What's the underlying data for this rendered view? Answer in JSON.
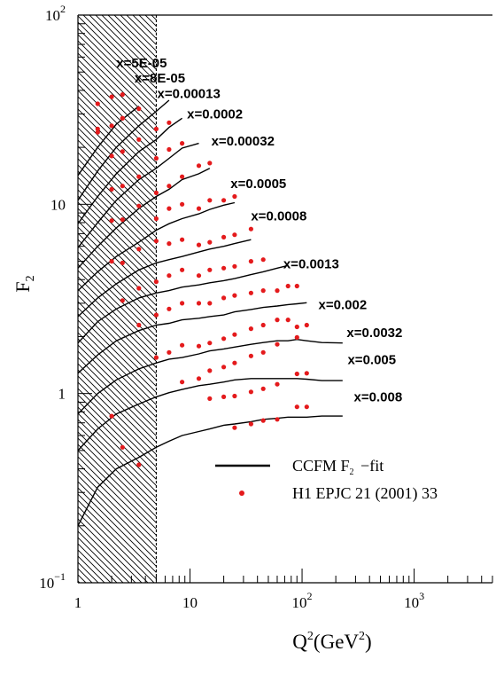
{
  "chart_data": {
    "type": "line",
    "title": "",
    "ylabel": "F",
    "ylabel_sub": "2",
    "xlabel_q": "Q",
    "xlabel_sup": "2",
    "xlabel_open": "(GeV",
    "xlabel_sup2": "2",
    "xlabel_close": ")",
    "xscale": "log",
    "yscale": "log",
    "xlim": [
      1,
      5000
    ],
    "ylim": [
      0.1,
      100
    ],
    "colors": {
      "curve": "#000000",
      "data": "#e41a1c",
      "hatch": "#000000"
    },
    "excluded_region": {
      "q2_min": 1,
      "q2_max": 5
    },
    "x_ticks": [
      {
        "value": 1,
        "label": "1"
      },
      {
        "value": 10,
        "label": "10"
      },
      {
        "value": 100,
        "base": "10",
        "exp": "2"
      },
      {
        "value": 1000,
        "base": "10",
        "exp": "3"
      }
    ],
    "y_ticks": [
      {
        "value": 0.1,
        "base": "10",
        "exp": "−1"
      },
      {
        "value": 1,
        "label": "1"
      },
      {
        "value": 10,
        "label": "10"
      },
      {
        "value": 100,
        "base": "10",
        "exp": "2"
      }
    ],
    "bin_labels": [
      {
        "text": "x=5E-05",
        "q2": 2.2,
        "f2": 53
      },
      {
        "text": "x=8E-05",
        "q2": 3.2,
        "f2": 44
      },
      {
        "text": "x=0.00013",
        "q2": 5.1,
        "f2": 36.5
      },
      {
        "text": "x=0.0002",
        "q2": 9.4,
        "f2": 28.5
      },
      {
        "text": "x=0.00032",
        "q2": 15.5,
        "f2": 20.5
      },
      {
        "text": "x=0.0005",
        "q2": 23,
        "f2": 12.2
      },
      {
        "text": "x=0.0008",
        "q2": 35,
        "f2": 8.2
      },
      {
        "text": "x=0.0013",
        "q2": 68,
        "f2": 4.6
      },
      {
        "text": "x=0.002",
        "q2": 140,
        "f2": 2.8
      },
      {
        "text": "x=0.0032",
        "q2": 250,
        "f2": 1.99
      },
      {
        "text": "x=0.005",
        "q2": 255,
        "f2": 1.43
      },
      {
        "text": "x=0.008",
        "q2": 290,
        "f2": 0.91
      }
    ],
    "series": [
      {
        "name": "x=5E-05",
        "curve": [
          [
            1,
            14.2
          ],
          [
            1.5,
            20
          ],
          [
            2.2,
            26.5
          ],
          [
            3.5,
            33
          ]
        ],
        "points": [
          [
            1.5,
            34
          ],
          [
            1.5,
            25
          ],
          [
            2.0,
            37
          ],
          [
            2.5,
            38
          ],
          [
            2.5,
            28.5
          ]
        ]
      },
      {
        "name": "x=8E-05",
        "curve": [
          [
            1,
            10.5
          ],
          [
            1.5,
            15
          ],
          [
            2.2,
            20
          ],
          [
            3.5,
            26
          ],
          [
            5,
            31
          ],
          [
            6.5,
            35.5
          ]
        ],
        "points": [
          [
            1.5,
            24
          ],
          [
            2.0,
            26
          ],
          [
            2.5,
            28.5
          ],
          [
            3.5,
            32
          ],
          [
            5,
            25
          ],
          [
            6.5,
            27
          ]
        ]
      },
      {
        "name": "x=0.00013",
        "curve": [
          [
            1,
            7.9
          ],
          [
            1.5,
            11
          ],
          [
            2.2,
            14.5
          ],
          [
            3.5,
            19
          ],
          [
            5,
            22
          ],
          [
            6.5,
            25.5
          ],
          [
            8.5,
            28.5
          ]
        ],
        "points": [
          [
            2.0,
            18
          ],
          [
            2.5,
            19
          ],
          [
            3.5,
            22
          ],
          [
            5,
            17.5
          ],
          [
            6.5,
            19.5
          ],
          [
            8.5,
            21
          ]
        ]
      },
      {
        "name": "x=0.0002",
        "curve": [
          [
            1,
            5.9
          ],
          [
            1.5,
            8
          ],
          [
            2.2,
            10.5
          ],
          [
            3.5,
            13.5
          ],
          [
            5,
            15.5
          ],
          [
            6.5,
            17.5
          ],
          [
            8.5,
            19.8
          ],
          [
            12,
            21
          ]
        ],
        "points": [
          [
            2.0,
            12
          ],
          [
            2.5,
            12.5
          ],
          [
            3.5,
            14
          ],
          [
            5,
            11.5
          ],
          [
            6.5,
            12.5
          ],
          [
            8.5,
            14
          ],
          [
            12,
            16
          ],
          [
            15,
            16.5
          ]
        ]
      },
      {
        "name": "x=0.00032",
        "curve": [
          [
            1,
            4.6
          ],
          [
            1.5,
            6
          ],
          [
            2.2,
            7.5
          ],
          [
            3.5,
            9.5
          ],
          [
            5,
            11
          ],
          [
            6.5,
            12
          ],
          [
            8.5,
            13.5
          ],
          [
            12,
            14.5
          ],
          [
            15,
            15.5
          ]
        ],
        "points": [
          [
            2.0,
            8.2
          ],
          [
            2.5,
            8.3
          ],
          [
            3.5,
            9.8
          ],
          [
            5,
            8.4
          ],
          [
            6.5,
            9.5
          ],
          [
            8.5,
            10
          ],
          [
            12,
            9.5
          ],
          [
            15,
            10.5
          ],
          [
            20,
            10.5
          ],
          [
            25,
            11
          ]
        ]
      },
      {
        "name": "x=0.0005",
        "curve": [
          [
            1,
            3.5
          ],
          [
            1.5,
            4.4
          ],
          [
            2.2,
            5.3
          ],
          [
            3.5,
            6.3
          ],
          [
            5,
            7.3
          ],
          [
            6.5,
            7.9
          ],
          [
            8.5,
            8.4
          ],
          [
            12,
            8.9
          ],
          [
            15,
            9.4
          ],
          [
            20,
            9.9
          ],
          [
            25,
            10.2
          ]
        ],
        "points": [
          [
            2.0,
            5.0
          ],
          [
            2.5,
            4.9
          ],
          [
            3.5,
            5.8
          ],
          [
            5,
            6.4
          ],
          [
            6.5,
            6.2
          ],
          [
            8.5,
            6.5
          ],
          [
            12,
            6.1
          ],
          [
            15,
            6.3
          ],
          [
            20,
            6.7
          ],
          [
            25,
            6.9
          ],
          [
            35,
            7.4
          ]
        ]
      },
      {
        "name": "x=0.0008",
        "curve": [
          [
            1,
            2.55
          ],
          [
            1.5,
            3.2
          ],
          [
            2.2,
            3.8
          ],
          [
            3.5,
            4.5
          ],
          [
            5,
            4.9
          ],
          [
            6.5,
            5.1
          ],
          [
            8.5,
            5.3
          ],
          [
            12,
            5.6
          ],
          [
            15,
            5.8
          ],
          [
            20,
            6.0
          ],
          [
            25,
            6.2
          ],
          [
            35,
            6.5
          ]
        ],
        "points": [
          [
            2.5,
            3.1
          ],
          [
            3.5,
            3.6
          ],
          [
            5,
            3.9
          ],
          [
            6.5,
            4.2
          ],
          [
            8.5,
            4.5
          ],
          [
            12,
            4.2
          ],
          [
            15,
            4.5
          ],
          [
            20,
            4.6
          ],
          [
            25,
            4.7
          ],
          [
            35,
            5.0
          ],
          [
            45,
            5.1
          ]
        ]
      },
      {
        "name": "x=0.0013",
        "curve": [
          [
            1,
            1.85
          ],
          [
            1.5,
            2.4
          ],
          [
            2.2,
            2.8
          ],
          [
            3.5,
            3.2
          ],
          [
            5,
            3.4
          ],
          [
            6.5,
            3.5
          ],
          [
            8.5,
            3.65
          ],
          [
            12,
            3.75
          ],
          [
            15,
            3.85
          ],
          [
            20,
            3.95
          ],
          [
            25,
            4.05
          ],
          [
            35,
            4.25
          ],
          [
            45,
            4.4
          ],
          [
            60,
            4.6
          ],
          [
            75,
            4.75
          ]
        ],
        "points": [
          [
            3.5,
            2.3
          ],
          [
            5,
            2.6
          ],
          [
            6.5,
            2.8
          ],
          [
            8.5,
            3.0
          ],
          [
            12,
            3.0
          ],
          [
            15,
            3.0
          ],
          [
            20,
            3.2
          ],
          [
            25,
            3.3
          ],
          [
            35,
            3.4
          ],
          [
            45,
            3.5
          ],
          [
            60,
            3.5
          ],
          [
            75,
            3.7
          ],
          [
            90,
            3.7
          ]
        ]
      },
      {
        "name": "x=0.002",
        "curve": [
          [
            1,
            1.28
          ],
          [
            1.5,
            1.6
          ],
          [
            2.2,
            1.9
          ],
          [
            3.5,
            2.15
          ],
          [
            5,
            2.3
          ],
          [
            6.5,
            2.35
          ],
          [
            8.5,
            2.45
          ],
          [
            12,
            2.5
          ],
          [
            15,
            2.55
          ],
          [
            20,
            2.6
          ],
          [
            25,
            2.7
          ],
          [
            35,
            2.78
          ],
          [
            45,
            2.85
          ],
          [
            60,
            2.9
          ],
          [
            75,
            2.95
          ],
          [
            90,
            2.98
          ],
          [
            110,
            3.02
          ]
        ],
        "points": [
          [
            5,
            1.55
          ],
          [
            6.5,
            1.65
          ],
          [
            8.5,
            1.8
          ],
          [
            12,
            1.78
          ],
          [
            15,
            1.85
          ],
          [
            20,
            1.95
          ],
          [
            25,
            2.05
          ],
          [
            35,
            2.2
          ],
          [
            45,
            2.3
          ],
          [
            60,
            2.45
          ],
          [
            75,
            2.45
          ],
          [
            90,
            2.25
          ],
          [
            110,
            2.3
          ]
        ]
      },
      {
        "name": "x=0.0032",
        "curve": [
          [
            1,
            0.78
          ],
          [
            1.5,
            1.0
          ],
          [
            2.2,
            1.18
          ],
          [
            3.5,
            1.35
          ],
          [
            5,
            1.45
          ],
          [
            6.5,
            1.52
          ],
          [
            8.5,
            1.55
          ],
          [
            12,
            1.62
          ],
          [
            15,
            1.68
          ],
          [
            20,
            1.72
          ],
          [
            25,
            1.76
          ],
          [
            35,
            1.82
          ],
          [
            45,
            1.86
          ],
          [
            60,
            1.9
          ],
          [
            75,
            1.9
          ],
          [
            90,
            1.93
          ],
          [
            110,
            1.9
          ],
          [
            150,
            1.86
          ],
          [
            230,
            1.85
          ]
        ],
        "points": [
          [
            8.5,
            1.15
          ],
          [
            12,
            1.2
          ],
          [
            15,
            1.32
          ],
          [
            20,
            1.38
          ],
          [
            25,
            1.45
          ],
          [
            35,
            1.58
          ],
          [
            45,
            1.65
          ],
          [
            60,
            1.82
          ],
          [
            90,
            1.98
          ]
        ]
      },
      {
        "name": "x=0.005",
        "curve": [
          [
            1,
            0.5
          ],
          [
            1.5,
            0.65
          ],
          [
            2.2,
            0.78
          ],
          [
            3.5,
            0.88
          ],
          [
            5,
            0.96
          ],
          [
            6.5,
            1.01
          ],
          [
            8.5,
            1.05
          ],
          [
            12,
            1.1
          ],
          [
            15,
            1.12
          ],
          [
            20,
            1.15
          ],
          [
            25,
            1.18
          ],
          [
            35,
            1.2
          ],
          [
            45,
            1.2
          ],
          [
            60,
            1.2
          ],
          [
            90,
            1.2
          ],
          [
            110,
            1.19
          ],
          [
            150,
            1.17
          ],
          [
            230,
            1.17
          ]
        ],
        "points": [
          [
            2.0,
            0.76
          ],
          [
            15,
            0.94
          ],
          [
            20,
            0.96
          ],
          [
            25,
            0.97
          ],
          [
            35,
            1.02
          ],
          [
            45,
            1.06
          ],
          [
            60,
            1.12
          ],
          [
            90,
            1.27
          ],
          [
            110,
            1.28
          ]
        ]
      },
      {
        "name": "x=0.008",
        "curve": [
          [
            1,
            0.2
          ],
          [
            1.5,
            0.32
          ],
          [
            2.2,
            0.4
          ],
          [
            3.5,
            0.46
          ],
          [
            5,
            0.52
          ],
          [
            6.5,
            0.56
          ],
          [
            8.5,
            0.6
          ],
          [
            12,
            0.63
          ],
          [
            15,
            0.65
          ],
          [
            20,
            0.68
          ],
          [
            25,
            0.69
          ],
          [
            35,
            0.71
          ],
          [
            45,
            0.73
          ],
          [
            60,
            0.74
          ],
          [
            75,
            0.75
          ],
          [
            90,
            0.75
          ],
          [
            110,
            0.75
          ],
          [
            150,
            0.76
          ],
          [
            230,
            0.76
          ]
        ],
        "points": [
          [
            2.5,
            0.52
          ],
          [
            3.5,
            0.42
          ],
          [
            25,
            0.66
          ],
          [
            35,
            0.69
          ],
          [
            45,
            0.72
          ],
          [
            60,
            0.73
          ],
          [
            90,
            0.85
          ],
          [
            110,
            0.85
          ]
        ]
      }
    ],
    "legend": {
      "placement": "lower-right",
      "line_label": "CCFM F",
      "line_label_sub": "2",
      "line_label_tail": " −fit",
      "marker_label": "H1 EPJC 21 (2001) 33"
    }
  }
}
